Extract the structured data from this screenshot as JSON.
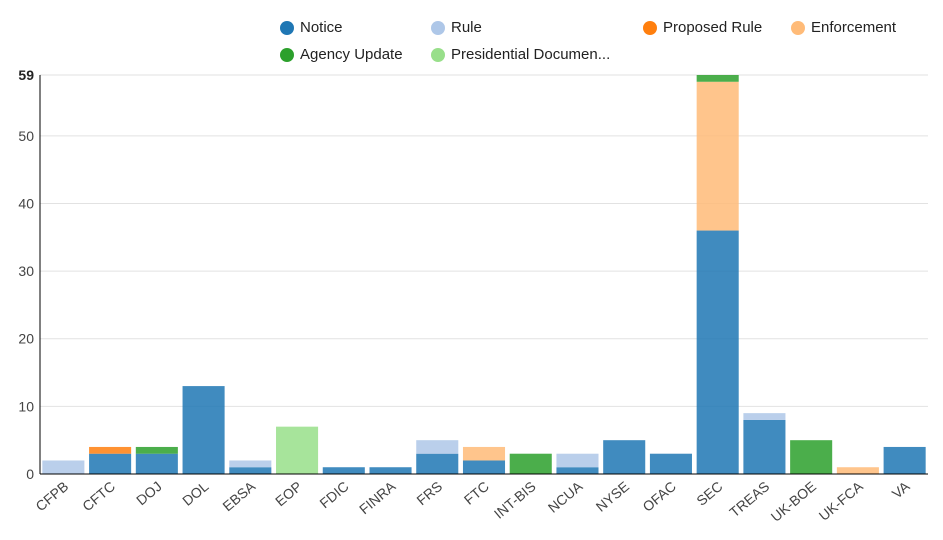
{
  "chart_data": {
    "type": "bar",
    "stacked": true,
    "categories": [
      "CFPB",
      "CFTC",
      "DOJ",
      "DOL",
      "EBSA",
      "EOP",
      "FDIC",
      "FINRA",
      "FRS",
      "FTC",
      "INT-BIS",
      "NCUA",
      "NYSE",
      "OFAC",
      "SEC",
      "TREAS",
      "UK-BOE",
      "UK-FCA",
      "VA"
    ],
    "series": [
      {
        "name": "Notice",
        "color": "#1f77b4",
        "values": [
          0,
          3,
          3,
          13,
          1,
          0,
          1,
          1,
          3,
          2,
          0,
          1,
          5,
          3,
          36,
          8,
          0,
          0,
          4
        ]
      },
      {
        "name": "Rule",
        "color": "#aec7e8",
        "values": [
          2,
          0,
          0,
          0,
          1,
          0,
          0,
          0,
          2,
          0,
          0,
          2,
          0,
          0,
          0,
          1,
          0,
          0,
          0
        ]
      },
      {
        "name": "Proposed Rule",
        "color": "#ff7f0e",
        "values": [
          0,
          1,
          0,
          0,
          0,
          0,
          0,
          0,
          0,
          0,
          0,
          0,
          0,
          0,
          0,
          0,
          0,
          0,
          0
        ]
      },
      {
        "name": "Enforcement",
        "color": "#ffbb78",
        "values": [
          0,
          0,
          0,
          0,
          0,
          0,
          0,
          0,
          0,
          2,
          0,
          0,
          0,
          0,
          22,
          0,
          0,
          1,
          0
        ]
      },
      {
        "name": "Agency Update",
        "color": "#2ca02c",
        "values": [
          0,
          0,
          1,
          0,
          0,
          0,
          0,
          0,
          0,
          0,
          3,
          0,
          0,
          0,
          1,
          0,
          5,
          0,
          0
        ]
      },
      {
        "name": "Presidential Documen...",
        "color": "#98df8a",
        "values": [
          0,
          0,
          0,
          0,
          0,
          7,
          0,
          0,
          0,
          0,
          0,
          0,
          0,
          0,
          0,
          0,
          0,
          0,
          0
        ]
      }
    ],
    "yticks": [
      0,
      10,
      20,
      30,
      40,
      50,
      59
    ],
    "ylim": [
      0,
      59
    ],
    "grid": true,
    "legend_position": "top"
  }
}
